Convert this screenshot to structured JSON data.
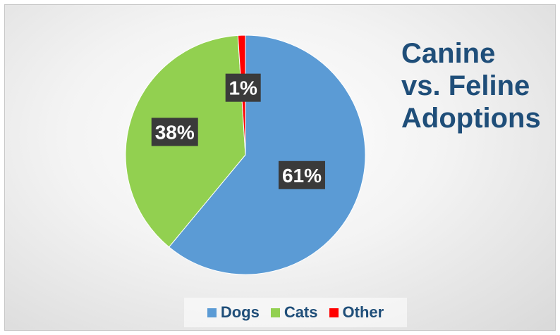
{
  "chart_data": {
    "type": "pie",
    "title_lines": [
      "Canine",
      "vs. Feline",
      "Adoptions"
    ],
    "categories": [
      "Dogs",
      "Cats",
      "Other"
    ],
    "values": [
      61,
      38,
      1
    ],
    "data_labels": [
      "61%",
      "38%",
      "1%"
    ],
    "colors": [
      "#5b9bd5",
      "#92d050",
      "#ff0000"
    ],
    "legend_position": "bottom"
  }
}
